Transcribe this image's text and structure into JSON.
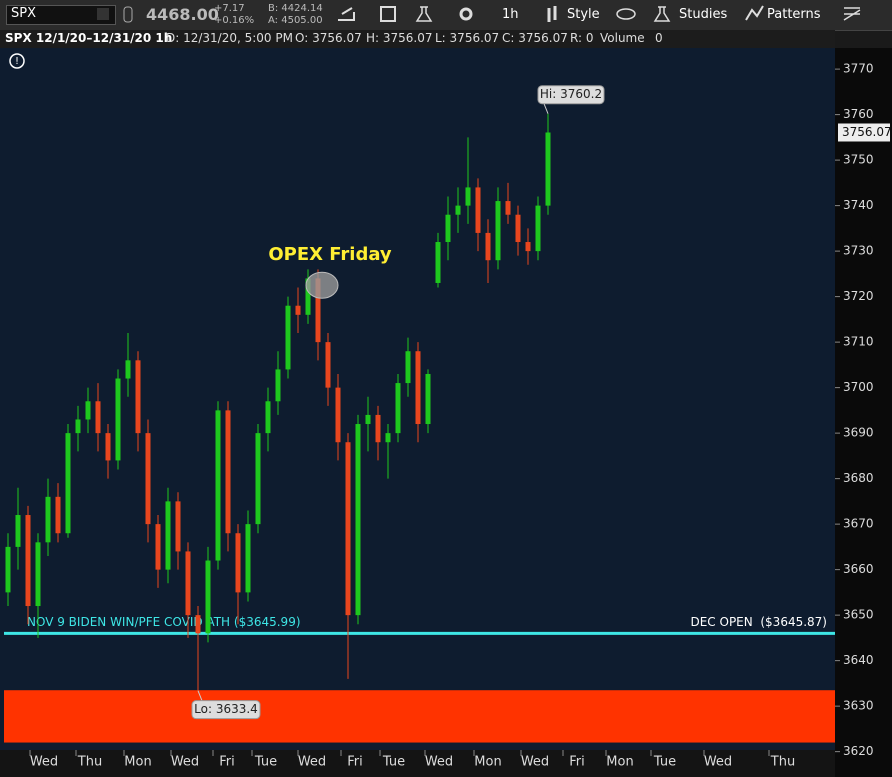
{
  "toolbar": {
    "symbol": "SPX",
    "last": "4468.00",
    "change": "+7.17",
    "change_pct": "+0.16%",
    "bid": "B: 4424.14",
    "ask": "A: 4505.00",
    "interval": "1h",
    "style": "Style",
    "studies": "Studies",
    "patterns": "Patterns"
  },
  "info": {
    "title": "SPX 12/1/20–12/31/20 1h",
    "date": "D: 12/31/20, 5:00 PM",
    "open": "O: 3756.07",
    "high": "H: 3756.07",
    "low": "L: 3756.07",
    "close": "C: 3756.07",
    "range": "R: 0",
    "volume_label": "Volume",
    "volume": "0"
  },
  "chart_data": {
    "type": "candlestick",
    "open": [
      3655,
      3665,
      3672,
      3652,
      3666,
      3676,
      3668,
      3690,
      3693,
      3697,
      3690,
      3684,
      3702,
      3706,
      3690,
      3670,
      3660,
      3675,
      3664,
      3650,
      3646,
      3662,
      3695,
      3668,
      3655,
      3670,
      3690,
      3697,
      3704,
      3718,
      3716,
      3724,
      3710,
      3700,
      3688,
      3650,
      3692,
      3694,
      3688,
      3690,
      3701,
      3708,
      3692,
      3723,
      3732,
      3738,
      3740,
      3744,
      3734,
      3728,
      3741,
      3738,
      3732,
      3730,
      3740
    ],
    "high": [
      3668,
      3678,
      3674,
      3668,
      3680,
      3679,
      3692,
      3696,
      3700,
      3701,
      3692,
      3704,
      3712,
      3708,
      3693,
      3672,
      3678,
      3677,
      3666,
      3652,
      3665,
      3697,
      3697,
      3670,
      3673,
      3692,
      3700,
      3708,
      3720,
      3722,
      3726,
      3726,
      3712,
      3703,
      3690,
      3694,
      3698,
      3696,
      3692,
      3703,
      3711,
      3710,
      3704,
      3734,
      3742,
      3744,
      3755,
      3746,
      3737,
      3744,
      3745,
      3740,
      3735,
      3742,
      3760.2
    ],
    "low": [
      3652,
      3660,
      3648,
      3645,
      3663,
      3666,
      3667,
      3686,
      3690,
      3686,
      3680,
      3682,
      3698,
      3686,
      3666,
      3656,
      3657,
      3660,
      3645,
      3633.4,
      3644,
      3660,
      3664,
      3648,
      3653,
      3668,
      3686,
      3694,
      3702,
      3712,
      3714,
      3706,
      3696,
      3684,
      3636,
      3648,
      3686,
      3684,
      3680,
      3688,
      3698,
      3688,
      3690,
      3722,
      3728,
      3734,
      3736,
      3730,
      3723,
      3726,
      3736,
      3729,
      3727,
      3728,
      3738
    ],
    "close": [
      3665,
      3672,
      3652,
      3666,
      3676,
      3668,
      3690,
      3693,
      3697,
      3690,
      3684,
      3702,
      3706,
      3690,
      3670,
      3660,
      3675,
      3664,
      3650,
      3646,
      3662,
      3695,
      3668,
      3655,
      3670,
      3690,
      3697,
      3704,
      3718,
      3716,
      3724,
      3710,
      3700,
      3688,
      3650,
      3692,
      3694,
      3688,
      3690,
      3701,
      3708,
      3692,
      3703,
      3732,
      3738,
      3740,
      3744,
      3734,
      3728,
      3741,
      3738,
      3732,
      3730,
      3740,
      3756.07
    ],
    "up_color": "#1ec81e",
    "down_color": "#e8461e",
    "ylim": [
      3620.8,
      3774.2
    ],
    "yticks": [
      3620,
      3630,
      3640,
      3650,
      3660,
      3670,
      3680,
      3690,
      3700,
      3710,
      3720,
      3730,
      3740,
      3750,
      3760,
      3770
    ],
    "x_labels": [
      "Wed",
      "Thu",
      "Mon",
      "Wed",
      "Fri",
      "Tue",
      "Wed",
      "Fri",
      "Tue",
      "Wed",
      "Mon",
      "Wed",
      "Fri",
      "Mon",
      "Tue",
      "Wed",
      "Thu"
    ],
    "level": {
      "value": 3645.99,
      "color": "#3ee6e6",
      "label": "NOV 9 BIDEN WIN/PFE COVID ATH ($3645.99)",
      "label_right": "DEC OPEN  ($3645.87)"
    },
    "zone": {
      "from": 3622,
      "to": 3633.5,
      "color": "#ff3300"
    },
    "annotation": {
      "text": "OPEX Friday",
      "value": 3722.5,
      "color": "#ffee33"
    },
    "hi_label": "Hi: 3760.2",
    "lo_label": "Lo: 3633.4"
  }
}
